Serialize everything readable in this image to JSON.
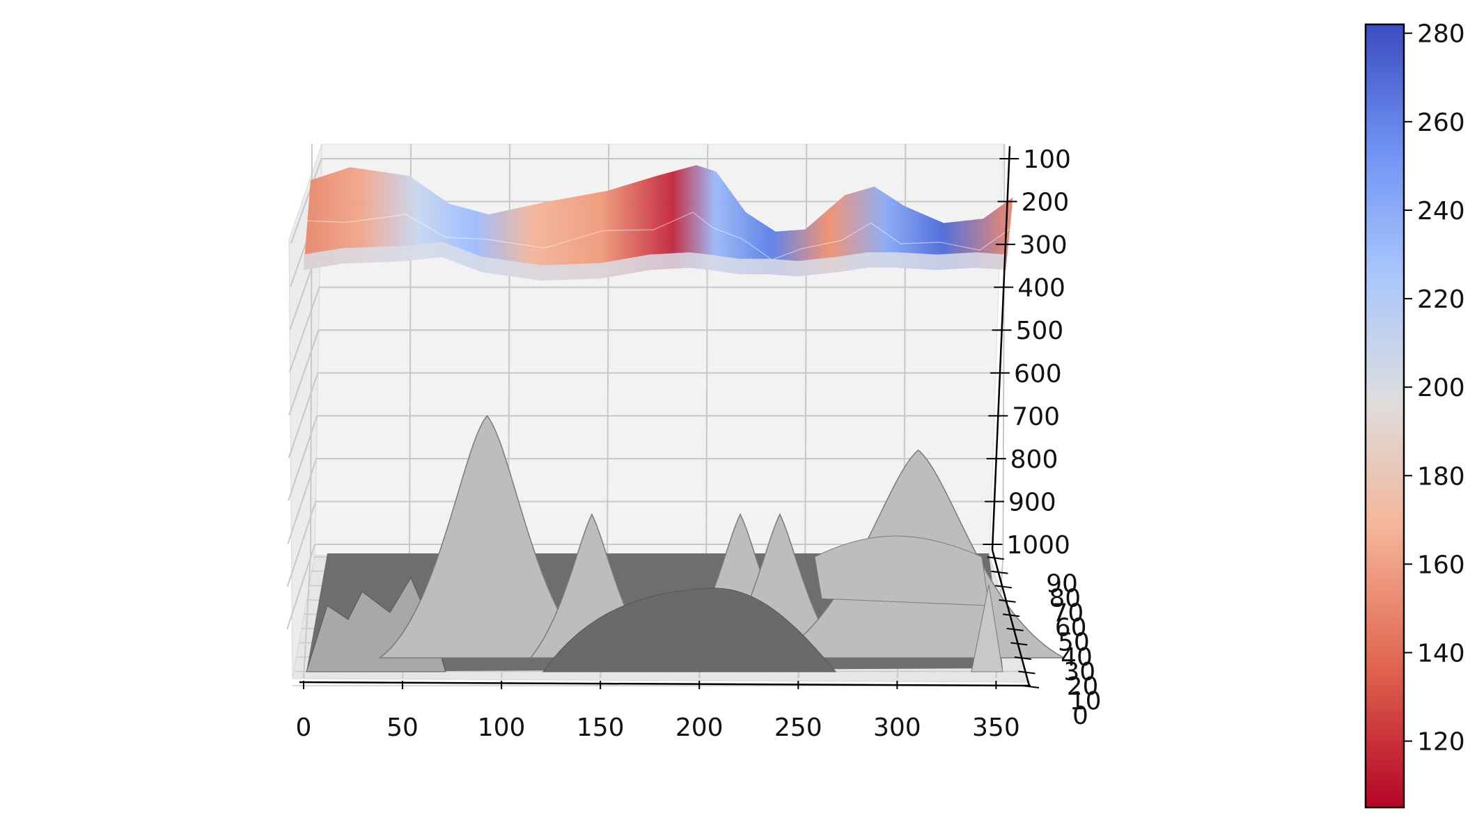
{
  "chart_data": {
    "type": "surface3d",
    "title": "",
    "xlabel": "",
    "ylabel": "",
    "zlabel": "",
    "x_ticks": [
      0,
      50,
      100,
      150,
      200,
      250,
      300,
      350
    ],
    "y_ticks": [
      0,
      10,
      20,
      30,
      40,
      50,
      60,
      70,
      80,
      90
    ],
    "z_ticks": [
      100,
      200,
      300,
      400,
      500,
      600,
      700,
      800,
      900,
      1000
    ],
    "xlim": [
      0,
      365
    ],
    "ylim": [
      0,
      95
    ],
    "zlim": [
      1000,
      100
    ],
    "z_axis_inverted": true,
    "grid": true,
    "colormap": "coolwarm_r",
    "colorbar": {
      "ticks": [
        120,
        140,
        160,
        180,
        200,
        220,
        240,
        260,
        280
      ],
      "range": [
        105,
        282
      ],
      "low_color": "#b40426",
      "mid_color": "#dddddd",
      "high_color": "#3b4cc0"
    },
    "top_surface": {
      "description_profile_x": [
        0,
        20,
        50,
        70,
        90,
        120,
        150,
        175,
        195,
        205,
        220,
        235,
        250,
        270,
        285,
        300,
        320,
        340,
        355
      ],
      "depth_back_row": [
        150,
        120,
        140,
        205,
        230,
        200,
        175,
        140,
        115,
        130,
        225,
        270,
        265,
        185,
        165,
        210,
        250,
        240,
        190
      ],
      "depth_front_row": [
        205,
        190,
        185,
        175,
        210,
        230,
        225,
        205,
        200,
        205,
        215,
        215,
        220,
        210,
        200,
        200,
        205,
        200,
        205
      ]
    },
    "bottom_surface": {
      "color": "#bdbdbd",
      "peaks": [
        {
          "x": 92,
          "height": 700
        },
        {
          "x": 145,
          "height": 930
        },
        {
          "x": 220,
          "height": 930
        },
        {
          "x": 240,
          "height": 930
        },
        {
          "x": 310,
          "height": 780
        }
      ]
    }
  }
}
